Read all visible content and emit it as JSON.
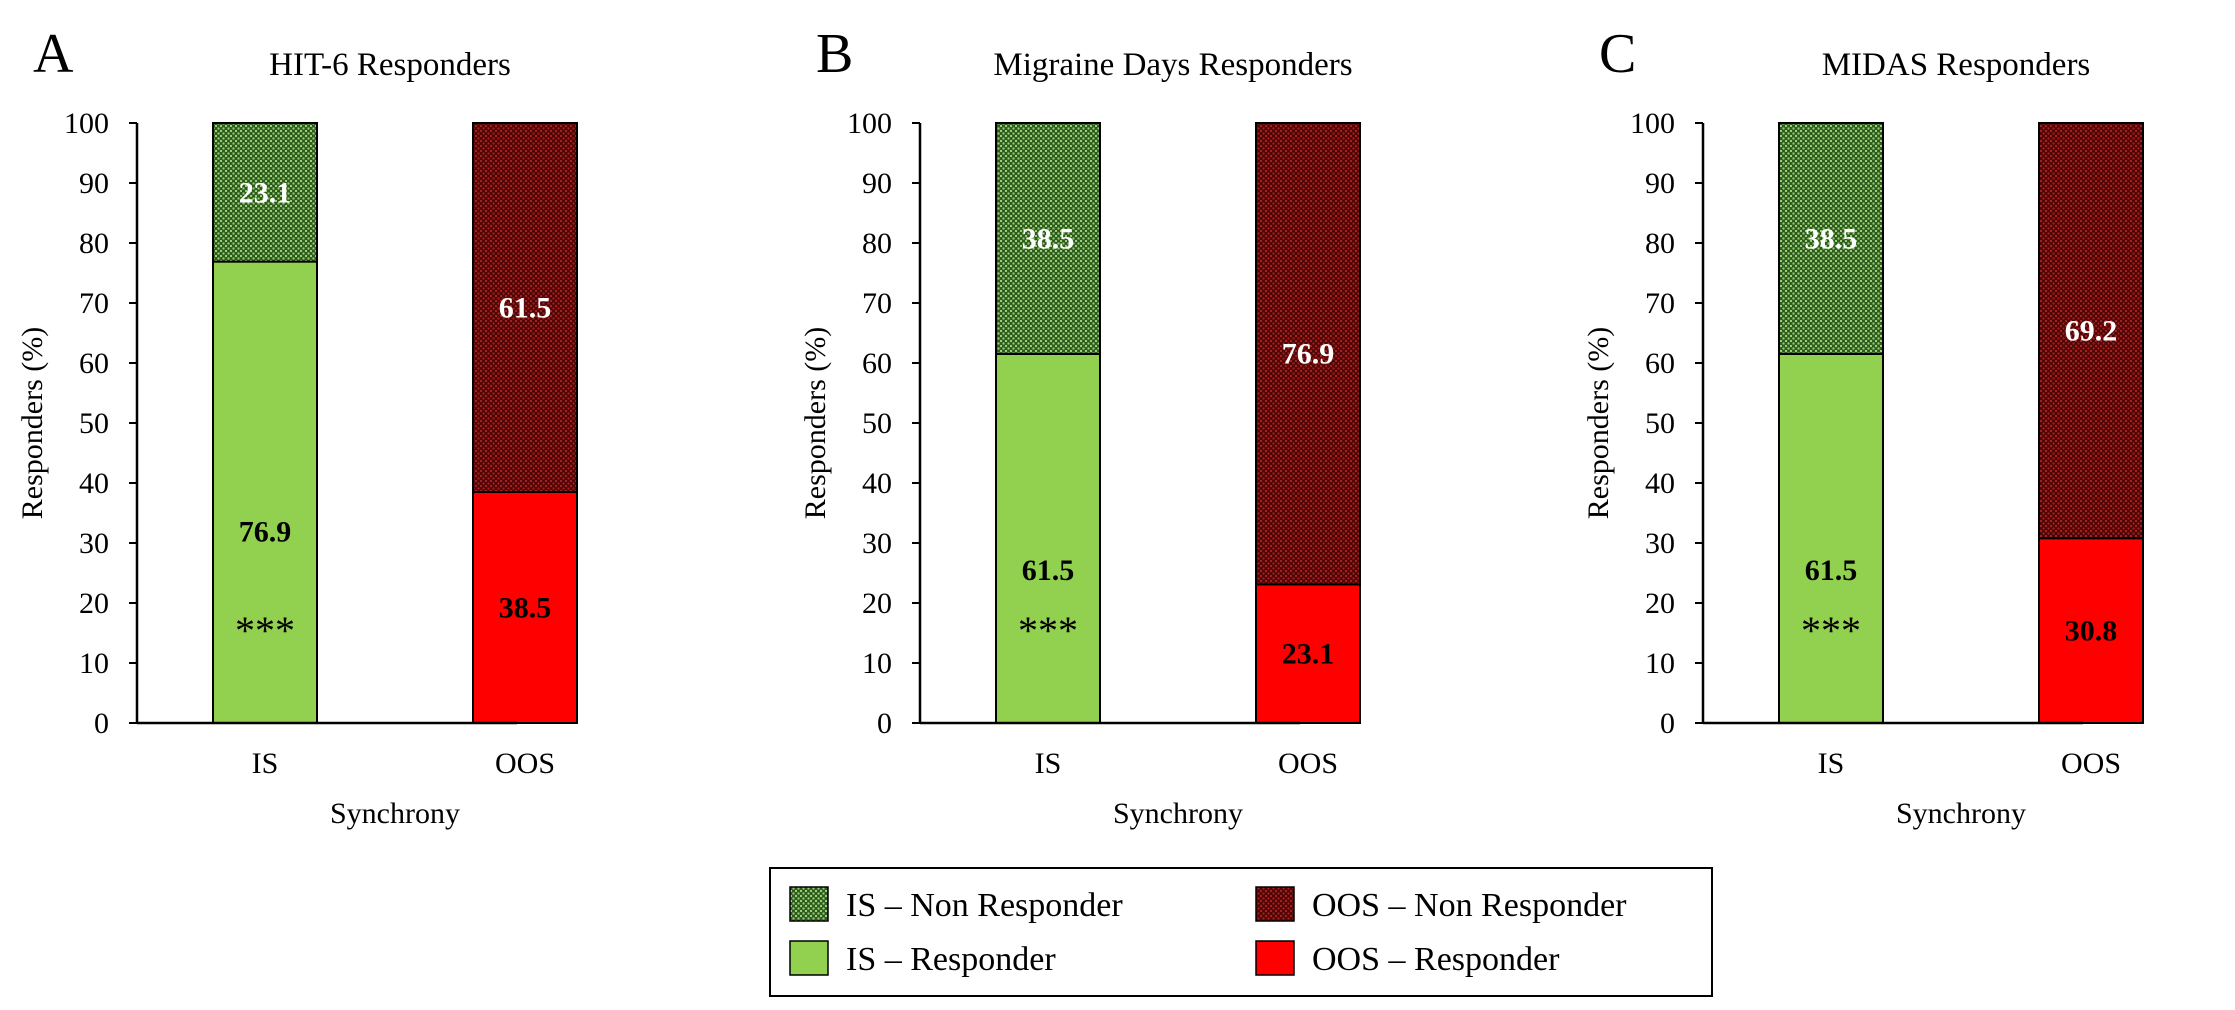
{
  "chart_data": [
    {
      "type": "bar",
      "stacked": true,
      "panel": "A",
      "title": "HIT-6 Responders",
      "xlabel": "Synchrony",
      "ylabel": "Responders (%)",
      "ylim": [
        0,
        100
      ],
      "yticks": [
        "0",
        "10",
        "20",
        "30",
        "40",
        "50",
        "60",
        "70",
        "80",
        "90",
        "100"
      ],
      "categories": [
        "IS",
        "OOS"
      ],
      "series": [
        {
          "name": "Responder",
          "values": [
            76.9,
            38.5
          ]
        },
        {
          "name": "Non Responder",
          "values": [
            23.1,
            61.5
          ]
        }
      ],
      "data_labels": {
        "responder": [
          "76.9",
          "38.5"
        ],
        "non_responder": [
          "23.1",
          "61.5"
        ]
      },
      "significance": "***"
    },
    {
      "type": "bar",
      "stacked": true,
      "panel": "B",
      "title": "Migraine Days Responders",
      "xlabel": "Synchrony",
      "ylabel": "Responders (%)",
      "ylim": [
        0,
        100
      ],
      "yticks": [
        "0",
        "10",
        "20",
        "30",
        "40",
        "50",
        "60",
        "70",
        "80",
        "90",
        "100"
      ],
      "categories": [
        "IS",
        "OOS"
      ],
      "series": [
        {
          "name": "Responder",
          "values": [
            61.5,
            23.1
          ]
        },
        {
          "name": "Non Responder",
          "values": [
            38.5,
            76.9
          ]
        }
      ],
      "data_labels": {
        "responder": [
          "61.5",
          "23.1"
        ],
        "non_responder": [
          "38.5",
          "76.9"
        ]
      },
      "significance": "***"
    },
    {
      "type": "bar",
      "stacked": true,
      "panel": "C",
      "title": "MIDAS Responders",
      "xlabel": "Synchrony",
      "ylabel": "Responders (%)",
      "ylim": [
        0,
        100
      ],
      "yticks": [
        "0",
        "10",
        "20",
        "30",
        "40",
        "50",
        "60",
        "70",
        "80",
        "90",
        "100"
      ],
      "categories": [
        "IS",
        "OOS"
      ],
      "series": [
        {
          "name": "Responder",
          "values": [
            61.5,
            30.8
          ]
        },
        {
          "name": "Non Responder",
          "values": [
            38.5,
            69.2
          ]
        }
      ],
      "data_labels": {
        "responder": [
          "61.5",
          "30.8"
        ],
        "non_responder": [
          "38.5",
          "69.2"
        ]
      },
      "significance": "***"
    }
  ],
  "legend": {
    "placement": "bottom-center",
    "items": [
      {
        "key": "is_non",
        "label": "IS – Non Responder"
      },
      {
        "key": "oos_non",
        "label": "OOS – Non Responder"
      },
      {
        "key": "is_resp",
        "label": "IS – Responder"
      },
      {
        "key": "oos_resp",
        "label": "OOS – Responder"
      }
    ]
  },
  "colors": {
    "is_responder": "#92d050",
    "is_non_responder": "#2e5a1e",
    "is_non_responder_dot": "#9ad17a",
    "oos_responder": "#ff0000",
    "oos_non_responder": "#4e0606",
    "oos_non_responder_dot": "#a82020"
  }
}
